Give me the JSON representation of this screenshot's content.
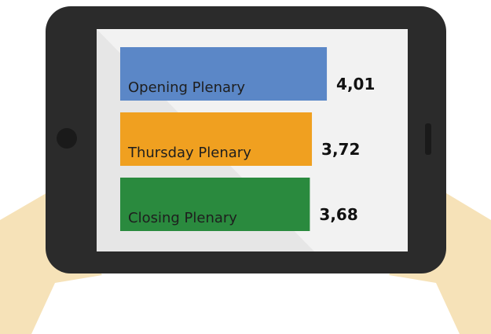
{
  "chart_data": {
    "type": "bar",
    "orientation": "horizontal",
    "categories": [
      "Opening Plenary",
      "Thursday Plenary",
      "Closing Plenary"
    ],
    "values": [
      4.01,
      3.72,
      3.68
    ],
    "value_labels": [
      "4,01",
      "3,72",
      "3,68"
    ],
    "colors": [
      "#5b87c7",
      "#f0a020",
      "#2a8a3e"
    ]
  }
}
